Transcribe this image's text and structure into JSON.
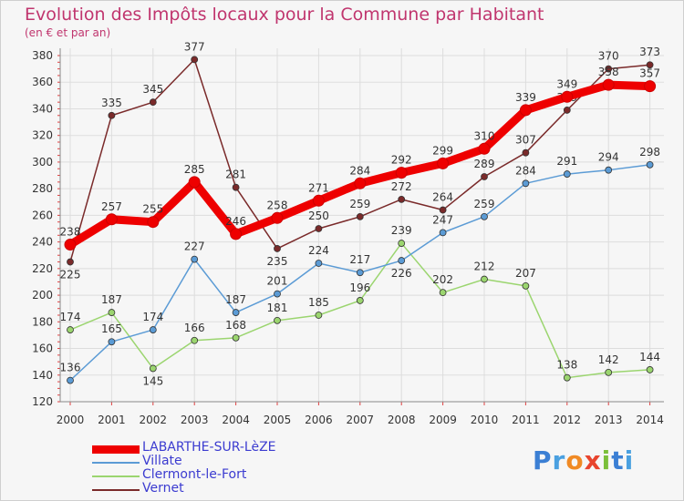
{
  "header": {
    "title": "Evolution des Impôts locaux pour la Commune par Habitant",
    "subtitle": "(en € et par an)"
  },
  "logo": {
    "text": "Proxiti",
    "letters": [
      "P",
      "r",
      "o",
      "x",
      "i",
      "t",
      "i"
    ]
  },
  "chart_data": {
    "type": "line",
    "title": "Evolution des Impôts locaux pour la Commune par Habitant",
    "subtitle": "(en € et par an)",
    "x": [
      "2000",
      "2001",
      "2002",
      "2003",
      "2004",
      "2005",
      "2006",
      "2007",
      "2008",
      "2009",
      "2010",
      "2011",
      "2012",
      "2013",
      "2014"
    ],
    "ylim": [
      120,
      380
    ],
    "yticks": [
      120,
      140,
      160,
      180,
      200,
      220,
      240,
      260,
      280,
      300,
      320,
      340,
      360,
      380
    ],
    "grid": true,
    "legend": "bottom-left",
    "series": [
      {
        "name": "LABARTHE-SUR-LèZE",
        "color": "#ee0000",
        "values": [
          238,
          257,
          255,
          285,
          246,
          258,
          271,
          284,
          292,
          299,
          310,
          339,
          349,
          358,
          357
        ],
        "labels": [
          "238",
          "257",
          "255",
          "285",
          "246",
          "258",
          "271",
          "284",
          "292",
          "299",
          "310",
          "339",
          "349",
          "358",
          "357"
        ]
      },
      {
        "name": "Villate",
        "color": "#5b9bd5",
        "values": [
          136,
          165,
          174,
          227,
          187,
          201,
          224,
          217,
          226,
          247,
          259,
          284,
          291,
          294,
          298
        ],
        "labels": [
          "136",
          "165",
          "174",
          "227",
          "187",
          "201",
          "224",
          "217",
          "226",
          "247",
          "259",
          "284",
          "291",
          "294",
          "298"
        ]
      },
      {
        "name": "Clermont-le-Fort",
        "color": "#9bd56f",
        "values": [
          174,
          187,
          145,
          166,
          168,
          181,
          185,
          196,
          239,
          202,
          212,
          207,
          138,
          142,
          144
        ],
        "labels": [
          "174",
          "187",
          "145",
          "166",
          "168",
          "181",
          "185",
          "196",
          "239",
          "202",
          "212",
          "207",
          "138",
          "142",
          "144"
        ]
      },
      {
        "name": "Vernet",
        "color": "#7a2a2a",
        "values": [
          225,
          335,
          345,
          377,
          281,
          235,
          250,
          259,
          272,
          264,
          289,
          307,
          339,
          370,
          373
        ],
        "labels": [
          "225",
          "335",
          "345",
          "377",
          "281",
          "235",
          "250",
          "259",
          "272",
          "264",
          "289",
          "307",
          "339",
          "370",
          "373"
        ]
      }
    ]
  }
}
